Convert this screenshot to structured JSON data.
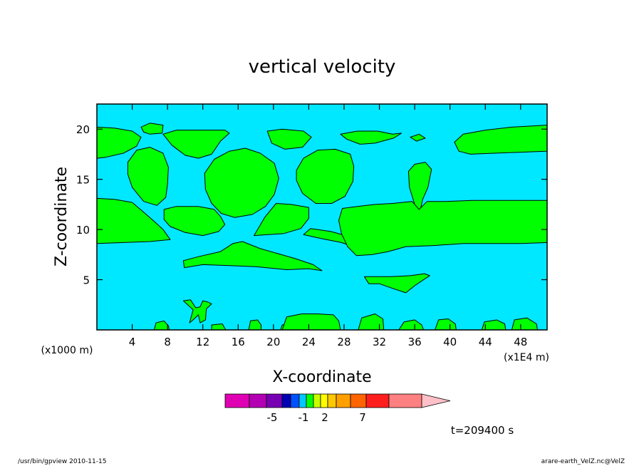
{
  "chart_data": {
    "type": "heatmap",
    "title": "vertical velocity",
    "xlabel": "X-coordinate",
    "ylabel": "Z-coordinate",
    "x_unit_label": "(x1000 m)",
    "x_unit_label_right": "(x1E4 m)",
    "xlim": [
      0,
      51
    ],
    "ylim": [
      0,
      22.5
    ],
    "x_ticks": [
      4,
      8,
      12,
      16,
      20,
      24,
      28,
      32,
      36,
      40,
      44,
      48
    ],
    "y_ticks": [
      5,
      10,
      15,
      20
    ],
    "background_field_color": "#00e8ff",
    "contour_fill_color": "#00ff00",
    "colorbar": {
      "colors": [
        "#e000b4",
        "#b400b4",
        "#7800b4",
        "#0000b4",
        "#0050ff",
        "#00c8ff",
        "#00ff00",
        "#c8ff00",
        "#ffff00",
        "#ffc800",
        "#ffa000",
        "#ff6400",
        "#ff1e1e",
        "#ff8080",
        "#ffc0c8"
      ],
      "labels": [
        "-5",
        "-1",
        "2",
        "7"
      ]
    },
    "time_label": "t=209400 s",
    "regions": [
      {
        "name": "upper-left-band",
        "points": [
          [
            0,
            20.2
          ],
          [
            2,
            20.1
          ],
          [
            4,
            19.8
          ],
          [
            5,
            19.2
          ],
          [
            4.5,
            18.3
          ],
          [
            3,
            17.6
          ],
          [
            1,
            17.2
          ],
          [
            0,
            17.1
          ]
        ]
      },
      {
        "name": "top-small-blob",
        "points": [
          [
            5,
            20.2
          ],
          [
            6,
            20.6
          ],
          [
            7.5,
            20.4
          ],
          [
            7.4,
            19.6
          ],
          [
            6,
            19.5
          ],
          [
            5.3,
            19.7
          ]
        ]
      },
      {
        "name": "upper-strip-8-15",
        "points": [
          [
            7.5,
            19.5
          ],
          [
            9,
            19.9
          ],
          [
            12,
            19.9
          ],
          [
            14.5,
            19.9
          ],
          [
            15,
            19.6
          ],
          [
            14,
            18.8
          ],
          [
            13,
            17.5
          ],
          [
            11.5,
            17.1
          ],
          [
            10,
            17.4
          ],
          [
            8.5,
            18.4
          ]
        ]
      },
      {
        "name": "lens-left",
        "points": [
          [
            3.5,
            16.7
          ],
          [
            4.5,
            17.9
          ],
          [
            6,
            18.2
          ],
          [
            7.5,
            17.6
          ],
          [
            8.1,
            16.2
          ],
          [
            8,
            14.5
          ],
          [
            7.8,
            13.2
          ],
          [
            6.8,
            12.4
          ],
          [
            5.3,
            12.8
          ],
          [
            4,
            14.2
          ],
          [
            3.5,
            15.5
          ]
        ]
      },
      {
        "name": "big-lens-center",
        "points": [
          [
            12.2,
            15.6
          ],
          [
            13.3,
            17
          ],
          [
            15,
            17.8
          ],
          [
            16.8,
            18.1
          ],
          [
            18.5,
            17.6
          ],
          [
            20.1,
            16.6
          ],
          [
            20.6,
            15.1
          ],
          [
            20.1,
            13.5
          ],
          [
            19.1,
            12.3
          ],
          [
            17.6,
            11.5
          ],
          [
            15.6,
            11.2
          ],
          [
            14.1,
            11.6
          ],
          [
            13,
            12.6
          ],
          [
            12.3,
            14
          ]
        ]
      },
      {
        "name": "upper-strip-20-24",
        "points": [
          [
            19.3,
            19.8
          ],
          [
            21,
            20
          ],
          [
            23.4,
            19.8
          ],
          [
            24.3,
            19.2
          ],
          [
            23.3,
            18.2
          ],
          [
            21.3,
            18
          ],
          [
            19.8,
            18.6
          ]
        ]
      },
      {
        "name": "lens-right",
        "points": [
          [
            22.6,
            15.9
          ],
          [
            23.4,
            17.1
          ],
          [
            25,
            17.9
          ],
          [
            27,
            18
          ],
          [
            28.7,
            17.5
          ],
          [
            29.1,
            16.3
          ],
          [
            29,
            14.8
          ],
          [
            28.1,
            13.3
          ],
          [
            26.6,
            12.6
          ],
          [
            24.8,
            12.6
          ],
          [
            23.3,
            13.6
          ],
          [
            22.6,
            14.9
          ]
        ]
      },
      {
        "name": "upper-strip-27-34",
        "points": [
          [
            27.6,
            19.5
          ],
          [
            29.5,
            19.8
          ],
          [
            31.8,
            19.8
          ],
          [
            33.5,
            19.5
          ],
          [
            34.5,
            19.6
          ],
          [
            33.6,
            19.1
          ],
          [
            31.5,
            18.6
          ],
          [
            29.8,
            18.5
          ],
          [
            28.3,
            19
          ]
        ]
      },
      {
        "name": "small-top-36",
        "points": [
          [
            35.5,
            19.2
          ],
          [
            36.5,
            19.5
          ],
          [
            37.2,
            19.1
          ],
          [
            36.2,
            18.8
          ]
        ]
      },
      {
        "name": "upper-right-band",
        "points": [
          [
            40.5,
            18.7
          ],
          [
            41.5,
            19.5
          ],
          [
            44,
            19.9
          ],
          [
            47,
            20.2
          ],
          [
            49,
            20.3
          ],
          [
            51,
            20.4
          ],
          [
            51,
            17.8
          ],
          [
            48,
            17.7
          ],
          [
            45,
            17.6
          ],
          [
            42.3,
            17.5
          ],
          [
            41,
            17.8
          ]
        ]
      },
      {
        "name": "teardrop-36",
        "points": [
          [
            35.3,
            15.8
          ],
          [
            36,
            16.5
          ],
          [
            37.2,
            16.7
          ],
          [
            37.9,
            16
          ],
          [
            37.5,
            14.2
          ],
          [
            36.9,
            13
          ],
          [
            36.5,
            11.4
          ],
          [
            36,
            12.5
          ],
          [
            35.4,
            14.2
          ]
        ]
      },
      {
        "name": "middle-left-band",
        "points": [
          [
            0,
            13.1
          ],
          [
            2,
            13
          ],
          [
            4,
            12.7
          ],
          [
            5.2,
            11.8
          ],
          [
            6.5,
            10.8
          ],
          [
            7.5,
            10
          ],
          [
            8.3,
            9
          ],
          [
            6,
            8.8
          ],
          [
            3,
            8.7
          ],
          [
            0,
            8.6
          ]
        ]
      },
      {
        "name": "middle-band-8-14",
        "points": [
          [
            7.6,
            12
          ],
          [
            9,
            12.3
          ],
          [
            11.5,
            12.3
          ],
          [
            13.3,
            12
          ],
          [
            14,
            11.3
          ],
          [
            14.5,
            10.5
          ],
          [
            13.8,
            9.8
          ],
          [
            12,
            9.4
          ],
          [
            10,
            9.7
          ],
          [
            8.3,
            10.3
          ],
          [
            7.6,
            11
          ]
        ]
      },
      {
        "name": "middle-band-18-24",
        "points": [
          [
            17.8,
            9.4
          ],
          [
            19,
            11.2
          ],
          [
            20.3,
            12.6
          ],
          [
            22,
            12.5
          ],
          [
            24,
            12.2
          ],
          [
            24,
            11.1
          ],
          [
            23.1,
            10.1
          ],
          [
            21.2,
            9.6
          ]
        ]
      },
      {
        "name": "wedge-24-28",
        "points": [
          [
            23.4,
            9.5
          ],
          [
            25.4,
            9.1
          ],
          [
            27.7,
            8.7
          ],
          [
            30,
            8
          ],
          [
            30,
            8.6
          ],
          [
            28.2,
            9.4
          ],
          [
            26.5,
            9.8
          ],
          [
            24.2,
            10.1
          ]
        ]
      },
      {
        "name": "right-main-band",
        "points": [
          [
            27.8,
            12.1
          ],
          [
            29.5,
            12.3
          ],
          [
            31.5,
            12.5
          ],
          [
            33.5,
            12.6
          ],
          [
            35.7,
            12.8
          ],
          [
            36.5,
            12
          ],
          [
            37.4,
            12.8
          ],
          [
            39.5,
            12.8
          ],
          [
            42.5,
            12.9
          ],
          [
            45,
            12.9
          ],
          [
            47.5,
            12.9
          ],
          [
            51,
            12.9
          ],
          [
            51,
            8.7
          ],
          [
            48,
            8.6
          ],
          [
            45,
            8.6
          ],
          [
            41.5,
            8.6
          ],
          [
            38,
            8.4
          ],
          [
            35,
            8.3
          ],
          [
            33,
            7.8
          ],
          [
            31.2,
            7.5
          ],
          [
            29.4,
            7.4
          ],
          [
            28.4,
            8.3
          ],
          [
            27.7,
            9.6
          ],
          [
            27.4,
            10.9
          ]
        ]
      },
      {
        "name": "lower-diagonal-band",
        "points": [
          [
            9.8,
            6.9
          ],
          [
            11.5,
            7.3
          ],
          [
            14,
            7.8
          ],
          [
            15.4,
            8.6
          ],
          [
            16.5,
            8.8
          ],
          [
            18.5,
            8.1
          ],
          [
            20.5,
            7.6
          ],
          [
            22.5,
            7.1
          ],
          [
            24.5,
            6.5
          ],
          [
            25.5,
            5.9
          ],
          [
            24,
            6.1
          ],
          [
            21.5,
            6
          ],
          [
            18,
            6.3
          ],
          [
            15,
            6.4
          ],
          [
            12,
            6.5
          ],
          [
            9.9,
            6.2
          ]
        ]
      },
      {
        "name": "lower-right-blob",
        "points": [
          [
            30.3,
            5.3
          ],
          [
            31.5,
            5.3
          ],
          [
            33.3,
            5.3
          ],
          [
            35.5,
            5.4
          ],
          [
            37.1,
            5.6
          ],
          [
            37.7,
            5.4
          ],
          [
            37,
            5
          ],
          [
            36,
            4.4
          ],
          [
            35,
            3.7
          ],
          [
            33.6,
            4.1
          ],
          [
            32,
            4.6
          ],
          [
            30.8,
            4.6
          ]
        ]
      },
      {
        "name": "bottom-y-shape",
        "points": [
          [
            9.8,
            2.9
          ],
          [
            10.6,
            3
          ],
          [
            11.2,
            2.2
          ],
          [
            11.7,
            2.3
          ],
          [
            12,
            2.9
          ],
          [
            12.5,
            2.8
          ],
          [
            13,
            2.6
          ],
          [
            12.4,
            2.1
          ],
          [
            12.3,
            1
          ],
          [
            11.7,
            0.7
          ],
          [
            11.5,
            1.5
          ],
          [
            10.9,
            1
          ],
          [
            10.5,
            0.7
          ],
          [
            10.9,
            2
          ]
        ]
      },
      {
        "name": "bottom-blob-6-8",
        "points": [
          [
            6.5,
            0
          ],
          [
            6.7,
            0.7
          ],
          [
            7.6,
            0.9
          ],
          [
            8.1,
            0.4
          ],
          [
            8.2,
            0
          ]
        ]
      },
      {
        "name": "bottom-blob-13-15",
        "points": [
          [
            13,
            0
          ],
          [
            13,
            0.5
          ],
          [
            14.2,
            0.6
          ],
          [
            14.6,
            0
          ]
        ]
      },
      {
        "name": "bottom-blob-17-19",
        "points": [
          [
            17.2,
            0
          ],
          [
            17.4,
            0.9
          ],
          [
            18.2,
            1
          ],
          [
            18.6,
            0.5
          ],
          [
            18.6,
            0
          ]
        ]
      },
      {
        "name": "bottom-blob-21-22",
        "points": [
          [
            20.8,
            0
          ],
          [
            21,
            0.5
          ],
          [
            21.8,
            0.6
          ],
          [
            22,
            0
          ]
        ]
      },
      {
        "name": "bottom-blob-21-28",
        "points": [
          [
            21,
            0
          ],
          [
            21.5,
            1.3
          ],
          [
            23.2,
            1.6
          ],
          [
            25,
            1.6
          ],
          [
            26.8,
            1.5
          ],
          [
            27.4,
            0.9
          ],
          [
            27.6,
            0
          ]
        ]
      },
      {
        "name": "bottom-blob-29-32",
        "points": [
          [
            29.6,
            0
          ],
          [
            30,
            1.2
          ],
          [
            31.5,
            1.6
          ],
          [
            32.4,
            1.1
          ],
          [
            32.5,
            0
          ]
        ]
      },
      {
        "name": "bottom-blob-34-37",
        "points": [
          [
            34.2,
            0
          ],
          [
            34.8,
            0.8
          ],
          [
            36,
            1
          ],
          [
            36.8,
            0.5
          ],
          [
            37,
            0
          ]
        ]
      },
      {
        "name": "bottom-blob-38-41",
        "points": [
          [
            38.3,
            0
          ],
          [
            38.7,
            1
          ],
          [
            39.8,
            1.1
          ],
          [
            40.6,
            0.6
          ],
          [
            40.7,
            0
          ]
        ]
      },
      {
        "name": "bottom-blob-43-46",
        "points": [
          [
            43.6,
            0
          ],
          [
            43.9,
            0.8
          ],
          [
            45.3,
            1
          ],
          [
            46.2,
            0.6
          ],
          [
            46.3,
            0
          ]
        ]
      },
      {
        "name": "bottom-blob-47-50",
        "points": [
          [
            47,
            0
          ],
          [
            47.3,
            1
          ],
          [
            48.7,
            1.2
          ],
          [
            49.8,
            0.6
          ],
          [
            49.9,
            0
          ]
        ]
      }
    ]
  },
  "footer": {
    "left": "/usr/bin/gpview   2010-11-15",
    "right": "arare-earth_VelZ.nc@VelZ"
  }
}
